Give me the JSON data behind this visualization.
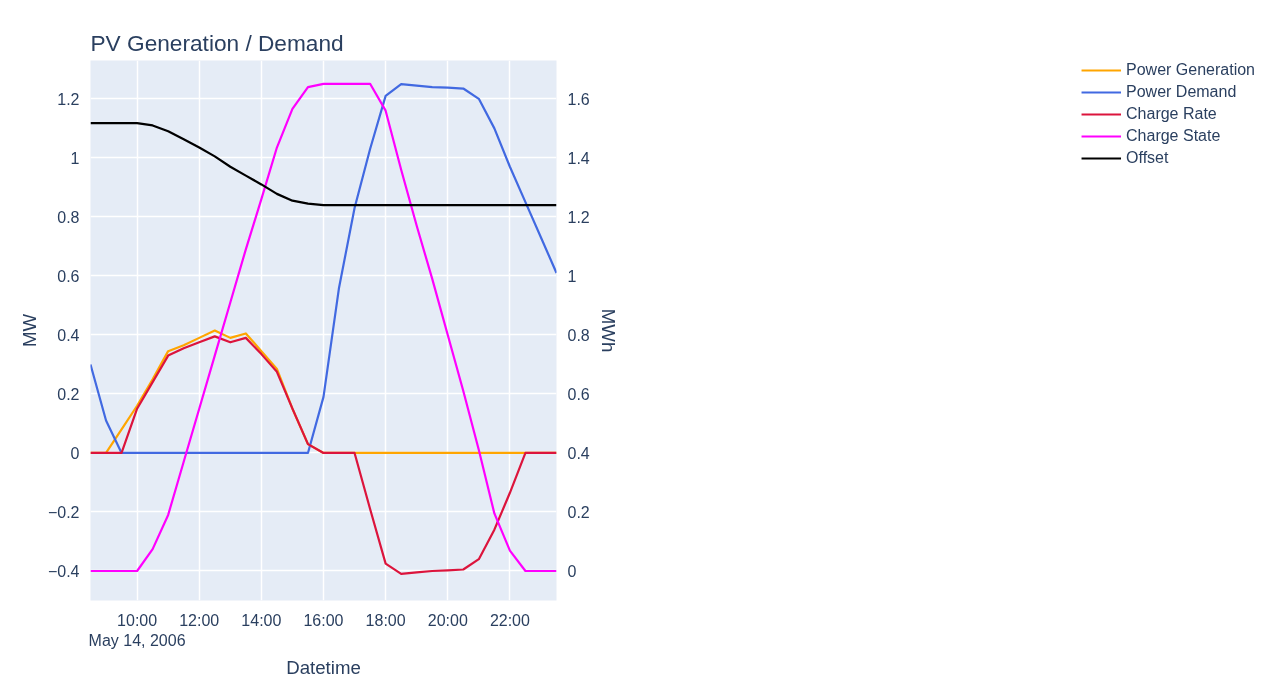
{
  "chart_data": {
    "type": "line",
    "title": "PV Generation / Demand",
    "xlabel": "Datetime",
    "ylabel": "MW",
    "y2label": "MWh",
    "x": [
      "2006-05-14T08:30",
      "2006-05-14T09:00",
      "2006-05-14T09:30",
      "2006-05-14T10:00",
      "2006-05-14T10:30",
      "2006-05-14T11:00",
      "2006-05-14T11:30",
      "2006-05-14T12:00",
      "2006-05-14T12:30",
      "2006-05-14T13:00",
      "2006-05-14T13:30",
      "2006-05-14T14:00",
      "2006-05-14T14:30",
      "2006-05-14T15:00",
      "2006-05-14T15:30",
      "2006-05-14T16:00",
      "2006-05-14T16:30",
      "2006-05-14T17:00",
      "2006-05-14T17:30",
      "2006-05-14T18:00",
      "2006-05-14T18:30",
      "2006-05-14T19:00",
      "2006-05-14T19:30",
      "2006-05-14T20:00",
      "2006-05-14T20:30",
      "2006-05-14T21:00",
      "2006-05-14T21:30",
      "2006-05-14T22:00",
      "2006-05-14T22:30",
      "2006-05-14T23:00",
      "2006-05-14T23:30"
    ],
    "series": [
      {
        "name": "Power Generation",
        "color": "#ffa500",
        "values": [
          0,
          0,
          0.08,
          0.16,
          0.25,
          0.345,
          0.365,
          0.39,
          0.415,
          0.39,
          0.405,
          0.345,
          0.285,
          0.15,
          0.03,
          0,
          0,
          0,
          0,
          0,
          0,
          0,
          0,
          0,
          0,
          0,
          0,
          0,
          0,
          0,
          0
        ]
      },
      {
        "name": "Power Demand",
        "color": "#4169e1",
        "values": [
          0.3,
          0.11,
          0,
          0,
          0,
          0,
          0,
          0,
          0,
          0,
          0,
          0,
          0,
          0,
          0,
          0.19,
          0.56,
          0.83,
          1.03,
          1.21,
          1.25,
          1.245,
          1.24,
          1.238,
          1.235,
          1.2,
          1.1,
          0.97,
          0.85,
          0.73,
          0.61
        ]
      },
      {
        "name": "Charge Rate",
        "color": "#dc143c",
        "values": [
          0,
          0,
          0,
          0.15,
          0.24,
          0.33,
          0.355,
          0.375,
          0.395,
          0.375,
          0.39,
          0.335,
          0.275,
          0.15,
          0.03,
          0,
          0,
          0,
          -0.19,
          -0.375,
          -0.41,
          -0.405,
          -0.4,
          -0.398,
          -0.395,
          -0.36,
          -0.26,
          -0.135,
          0,
          0,
          0
        ]
      },
      {
        "name": "Charge State",
        "color": "#ff00ff",
        "axis": "y2",
        "values": [
          0,
          0,
          0,
          0,
          0.074,
          0.19,
          0.37,
          0.55,
          0.73,
          0.91,
          1.09,
          1.26,
          1.435,
          1.566,
          1.64,
          1.651,
          1.651,
          1.651,
          1.651,
          1.56,
          1.36,
          1.17,
          0.99,
          0.8,
          0.61,
          0.41,
          0.195,
          0.069,
          0,
          0,
          0
        ]
      },
      {
        "name": "Offset",
        "color": "#000000",
        "values": [
          1.118,
          1.118,
          1.118,
          1.118,
          1.11,
          1.09,
          1.063,
          1.035,
          1.005,
          0.97,
          0.94,
          0.91,
          0.878,
          0.855,
          0.845,
          0.84,
          0.84,
          0.84,
          0.84,
          0.84,
          0.84,
          0.84,
          0.84,
          0.84,
          0.84,
          0.84,
          0.84,
          0.84,
          0.84,
          0.84,
          0.84
        ]
      }
    ],
    "xlim": [
      "2006-05-14T08:30",
      "2006-05-14T23:30"
    ],
    "xticks": [
      {
        "value": "2006-05-14T10:00",
        "label": "10:00\nMay 14, 2006"
      },
      {
        "value": "2006-05-14T12:00",
        "label": "12:00"
      },
      {
        "value": "2006-05-14T14:00",
        "label": "14:00"
      },
      {
        "value": "2006-05-14T16:00",
        "label": "16:00"
      },
      {
        "value": "2006-05-14T18:00",
        "label": "18:00"
      },
      {
        "value": "2006-05-14T20:00",
        "label": "20:00"
      },
      {
        "value": "2006-05-14T22:00",
        "label": "22:00"
      }
    ],
    "ylim": [
      -0.5,
      1.33
    ],
    "yticks": [
      {
        "value": -0.4,
        "label": "−0.4"
      },
      {
        "value": -0.2,
        "label": "−0.2"
      },
      0,
      0.2,
      0.4,
      0.6,
      0.8,
      1,
      1.2
    ],
    "y2lim": [
      -0.1,
      1.73
    ],
    "y2ticks": [
      0,
      0.2,
      0.4,
      0.6,
      0.8,
      1,
      1.2,
      1.4,
      1.6
    ],
    "grid": true,
    "legend": "top right",
    "marker": "none",
    "line_style": "solid"
  }
}
